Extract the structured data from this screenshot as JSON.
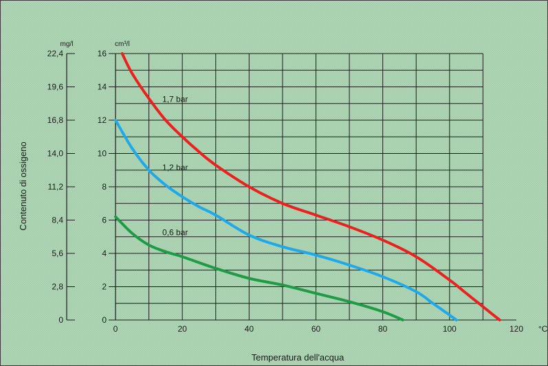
{
  "chart_data": {
    "type": "line",
    "title": "",
    "xlabel": "Temperatura dell'acqua",
    "ylabel": "Contenuto di ossigeno",
    "x_unit": "°C",
    "y_unit_left": "mg/l",
    "y_unit_right": "cm³/l",
    "xlim": [
      0,
      120
    ],
    "ylim": [
      0,
      16
    ],
    "x_ticks": [
      "0",
      "20",
      "40",
      "60",
      "80",
      "100",
      "120"
    ],
    "y_ticks_cm3": [
      "0",
      "2",
      "4",
      "6",
      "8",
      "10",
      "12",
      "14",
      "16"
    ],
    "y_ticks_mg": [
      "0",
      "2,8",
      "5,6",
      "8,4",
      "11,2",
      "14,0",
      "16,8",
      "19,6",
      "22,4"
    ],
    "grid": true,
    "legend": "none",
    "series": [
      {
        "name": "1,7 bar",
        "color": "#e8231f",
        "x": [
          2,
          5,
          10,
          15,
          20,
          25,
          30,
          40,
          50,
          60,
          70,
          80,
          90,
          100,
          105,
          110,
          115
        ],
        "y": [
          16,
          14.8,
          13.3,
          12,
          11,
          10.1,
          9.3,
          8,
          7,
          6.3,
          5.6,
          4.8,
          3.8,
          2.4,
          1.6,
          0.8,
          0
        ]
      },
      {
        "name": "1,2 bar",
        "color": "#1fa9e8",
        "x": [
          0,
          5,
          10,
          15,
          20,
          25,
          30,
          40,
          50,
          60,
          70,
          80,
          90,
          95,
          100,
          102
        ],
        "y": [
          12,
          10.3,
          9,
          8.1,
          7.4,
          6.8,
          6.3,
          5.1,
          4.4,
          3.9,
          3.3,
          2.6,
          1.7,
          1,
          0.3,
          0
        ]
      },
      {
        "name": "0,6 bar",
        "color": "#1f9a45",
        "x": [
          0,
          5,
          10,
          15,
          20,
          30,
          40,
          50,
          60,
          70,
          80,
          86
        ],
        "y": [
          6.2,
          5.2,
          4.5,
          4.1,
          3.8,
          3.1,
          2.5,
          2.1,
          1.6,
          1.1,
          0.5,
          0
        ]
      }
    ],
    "annotations": [
      "1,7 bar",
      "1,2 bar",
      "0,6 bar"
    ]
  }
}
